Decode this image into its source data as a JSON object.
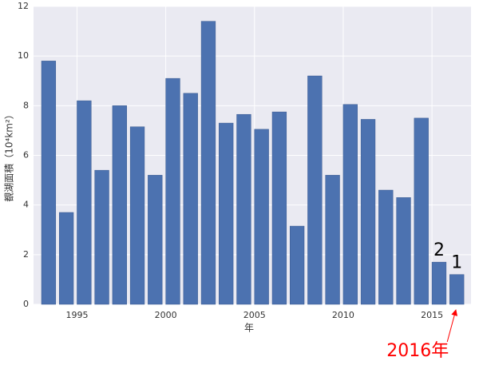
{
  "chart_data": {
    "type": "bar",
    "x": [
      1993,
      1994,
      1995,
      1996,
      1997,
      1998,
      1999,
      2000,
      2001,
      2002,
      2003,
      2004,
      2005,
      2006,
      2007,
      2008,
      2009,
      2010,
      2011,
      2012,
      2013,
      2014,
      2015,
      2016
    ],
    "values": [
      9.8,
      3.7,
      8.2,
      5.4,
      8.0,
      7.15,
      5.2,
      9.1,
      8.5,
      11.4,
      7.3,
      7.65,
      7.05,
      7.75,
      3.15,
      9.2,
      5.2,
      8.05,
      7.45,
      4.6,
      4.3,
      7.5,
      1.7,
      1.2
    ],
    "color": "#4c72b0",
    "xlabel": "年",
    "ylabel": "覩湖面積（10⁴km²）",
    "xlim": [
      1992.55,
      2017.2
    ],
    "xticks": [
      1995,
      2000,
      2005,
      2010,
      2015
    ],
    "ylim": [
      0,
      12
    ],
    "yticks": [
      0,
      2,
      4,
      6,
      8,
      10,
      12
    ],
    "grid": true,
    "annotations": [
      "2",
      "1",
      "2016年"
    ]
  }
}
